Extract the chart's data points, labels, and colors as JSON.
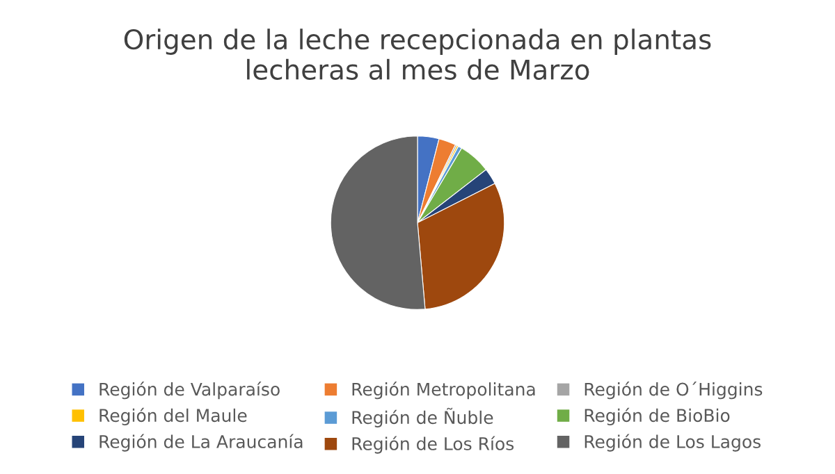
{
  "chart_data": {
    "type": "pie",
    "title": "Origen de la leche recepcionada en plantas\nlecheras al mes de Marzo",
    "categories": [
      "Región de Valparaíso",
      "Región Metropolitana",
      "Región de O´Higgins",
      "Región del Maule",
      "Región de Ñuble",
      "Región de BioBio",
      "Región de La Araucanía",
      "Región de Los Ríos",
      "Región de Los Lagos"
    ],
    "values": [
      4,
      3.2,
      0.3,
      0.3,
      0.7,
      6,
      3,
      31.1,
      51.4
    ],
    "colors": [
      "#4472c4",
      "#ed7d31",
      "#a5a5a5",
      "#ffc000",
      "#5b9bd5",
      "#70ad47",
      "#264478",
      "#9e480e",
      "#636363"
    ],
    "legend": "bottom"
  }
}
